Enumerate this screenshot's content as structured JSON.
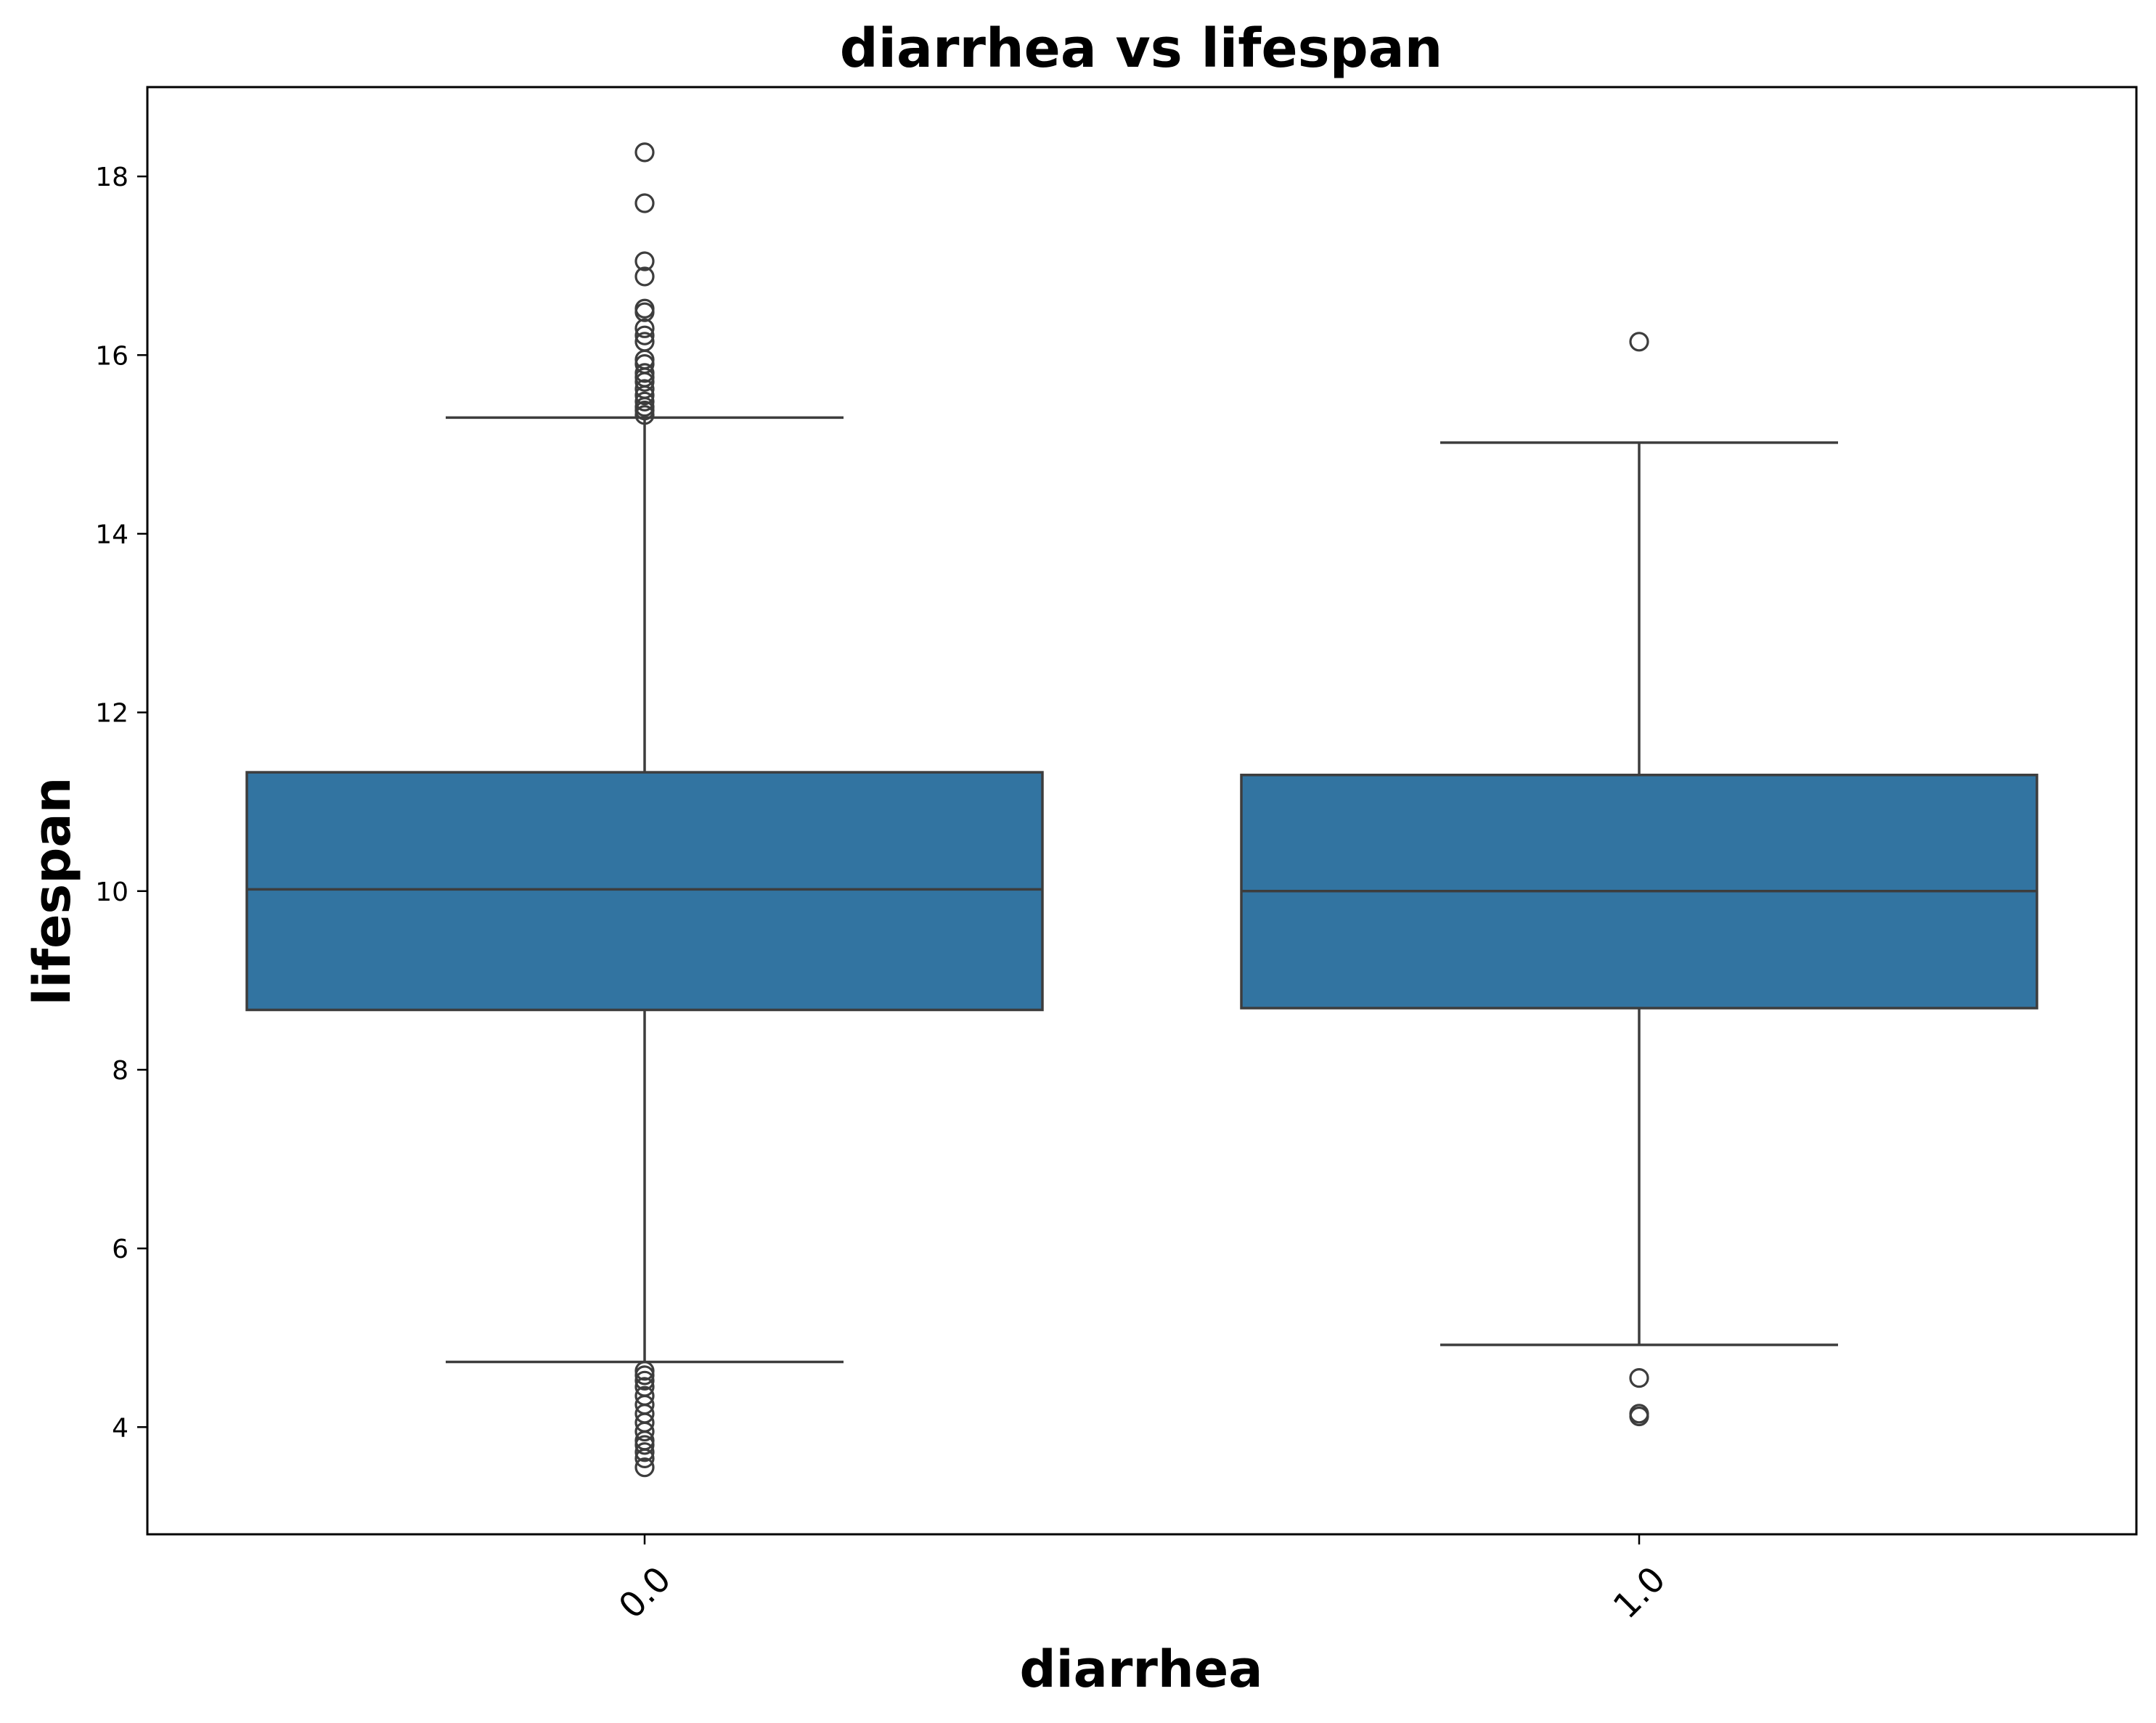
{
  "chart_data": {
    "type": "box",
    "title": "diarrhea vs lifespan",
    "xlabel": "diarrhea",
    "ylabel": "lifespan",
    "categories": [
      "0.0",
      "1.0"
    ],
    "ylim": [
      2.8,
      19.0
    ],
    "yticks": [
      4,
      6,
      8,
      10,
      12,
      14,
      16,
      18
    ],
    "grid": false,
    "box_color": "#3274a1",
    "line_color": "#3d3d3d",
    "boxes": [
      {
        "category": "0.0",
        "whisker_low": 4.73,
        "q1": 8.67,
        "median": 10.02,
        "q3": 11.33,
        "whisker_high": 15.3,
        "outliers": [
          18.27,
          17.7,
          17.05,
          16.88,
          16.52,
          16.48,
          16.3,
          16.22,
          16.15,
          15.95,
          15.9,
          15.8,
          15.75,
          15.7,
          15.62,
          15.55,
          15.48,
          15.42,
          15.38,
          15.33,
          4.63,
          4.58,
          4.52,
          4.45,
          4.35,
          4.25,
          4.15,
          4.05,
          3.95,
          3.85,
          3.8,
          3.72,
          3.65,
          3.55
        ]
      },
      {
        "category": "1.0",
        "whisker_low": 4.92,
        "q1": 8.69,
        "median": 10.0,
        "q3": 11.3,
        "whisker_high": 15.02,
        "outliers": [
          16.15,
          4.55,
          4.15,
          4.12
        ]
      }
    ]
  }
}
